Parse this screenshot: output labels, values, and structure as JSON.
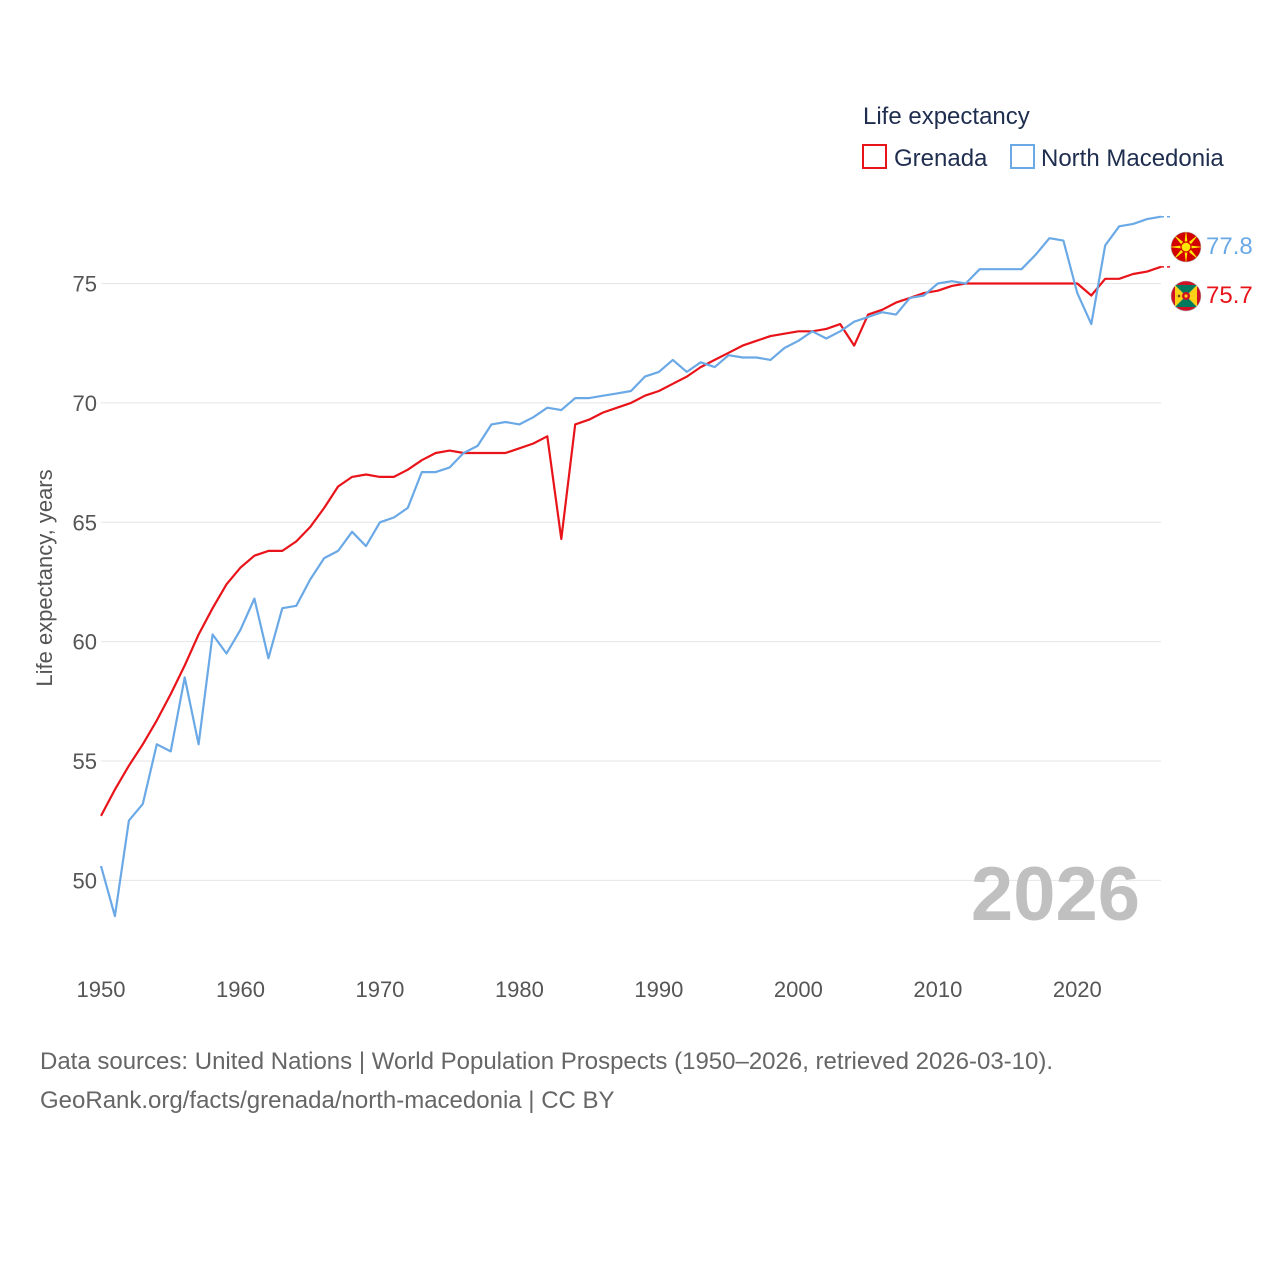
{
  "colors": {
    "grenada": "#e8141a",
    "north_macedonia": "#6aa9e6",
    "grid": "#e6e6e6",
    "tick": "#555555",
    "year": "#c0c0c0",
    "source": "#666666",
    "legend": "#1f2d4f"
  },
  "legend": {
    "title": "Life expectancy",
    "items": [
      "Grenada",
      "North Macedonia"
    ]
  },
  "year_label": "2026",
  "end_labels": {
    "north_macedonia": "77.8",
    "grenada": "75.7"
  },
  "icons": {
    "north_macedonia": "north-macedonia-flag-icon",
    "grenada": "grenada-flag-icon"
  },
  "source": {
    "line1": "Data sources: United Nations | World Population Prospects (1950–2026, retrieved 2026-03-10).",
    "line2": "GeoRank.org/facts/grenada/north-macedonia | CC BY"
  },
  "chart_data": {
    "type": "line",
    "title": "Life expectancy",
    "xlabel": "",
    "ylabel": "Life expectancy, years",
    "xlim": [
      1950,
      2026
    ],
    "ylim": [
      47.5,
      78.5
    ],
    "xticks": [
      1950,
      1960,
      1970,
      1980,
      1990,
      2000,
      2010,
      2020
    ],
    "yticks": [
      50,
      55,
      60,
      65,
      70,
      75
    ],
    "grid": true,
    "legend_position": "top-right",
    "x": [
      1950,
      1951,
      1952,
      1953,
      1954,
      1955,
      1956,
      1957,
      1958,
      1959,
      1960,
      1961,
      1962,
      1963,
      1964,
      1965,
      1966,
      1967,
      1968,
      1969,
      1970,
      1971,
      1972,
      1973,
      1974,
      1975,
      1976,
      1977,
      1978,
      1979,
      1980,
      1981,
      1982,
      1983,
      1984,
      1985,
      1986,
      1987,
      1988,
      1989,
      1990,
      1991,
      1992,
      1993,
      1994,
      1995,
      1996,
      1997,
      1998,
      1999,
      2000,
      2001,
      2002,
      2003,
      2004,
      2005,
      2006,
      2007,
      2008,
      2009,
      2010,
      2011,
      2012,
      2013,
      2014,
      2015,
      2016,
      2017,
      2018,
      2019,
      2020,
      2021,
      2022,
      2023,
      2024,
      2025,
      2026
    ],
    "series": [
      {
        "name": "Grenada",
        "values": [
          52.7,
          53.8,
          54.8,
          55.7,
          56.7,
          57.8,
          59.0,
          60.3,
          61.4,
          62.4,
          63.1,
          63.6,
          63.8,
          63.8,
          64.2,
          64.8,
          65.6,
          66.5,
          66.9,
          67.0,
          66.9,
          66.9,
          67.2,
          67.6,
          67.9,
          68.0,
          67.9,
          67.9,
          67.9,
          67.9,
          68.1,
          68.3,
          68.6,
          64.3,
          69.1,
          69.3,
          69.6,
          69.8,
          70.0,
          70.3,
          70.5,
          70.8,
          71.1,
          71.5,
          71.8,
          72.1,
          72.4,
          72.6,
          72.8,
          72.9,
          73.0,
          73.0,
          73.1,
          73.3,
          72.4,
          73.7,
          73.9,
          74.2,
          74.4,
          74.6,
          74.7,
          74.9,
          75.0,
          75.0,
          75.0,
          75.0,
          75.0,
          75.0,
          75.0,
          75.0,
          75.0,
          74.5,
          75.2,
          75.2,
          75.4,
          75.5,
          75.7
        ]
      },
      {
        "name": "North Macedonia",
        "values": [
          50.6,
          48.5,
          52.5,
          53.2,
          55.7,
          55.4,
          58.5,
          55.7,
          60.3,
          59.5,
          60.5,
          61.8,
          59.3,
          61.4,
          61.5,
          62.6,
          63.5,
          63.8,
          64.6,
          64.0,
          65.0,
          65.2,
          65.6,
          67.1,
          67.1,
          67.3,
          67.9,
          68.2,
          69.1,
          69.2,
          69.1,
          69.4,
          69.8,
          69.7,
          70.2,
          70.2,
          70.3,
          70.4,
          70.5,
          71.1,
          71.3,
          71.8,
          71.3,
          71.7,
          71.5,
          72.0,
          71.9,
          71.9,
          71.8,
          72.3,
          72.6,
          73.0,
          72.7,
          73.0,
          73.4,
          73.6,
          73.8,
          73.7,
          74.4,
          74.5,
          75.0,
          75.1,
          75.0,
          75.6,
          75.6,
          75.6,
          75.6,
          76.2,
          76.9,
          76.8,
          74.6,
          73.3,
          76.6,
          77.4,
          77.5,
          77.7,
          77.8
        ]
      }
    ]
  }
}
